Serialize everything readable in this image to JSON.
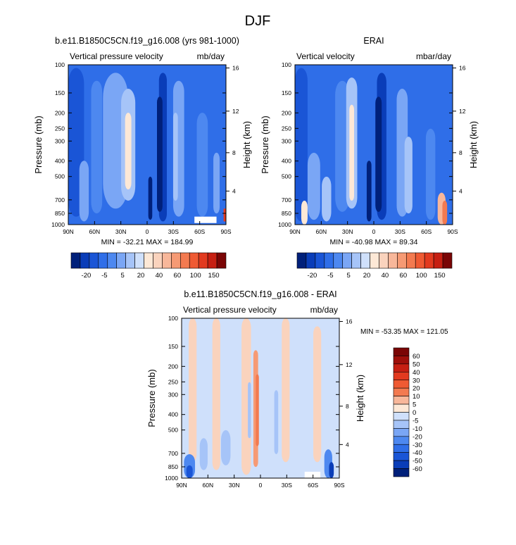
{
  "page_title": "DJF",
  "colors": {
    "blues": [
      "#00207a",
      "#0a3db8",
      "#1a55d6",
      "#2f6ee8",
      "#4d88f0",
      "#7aa6f5",
      "#a6c4f8",
      "#cfe0fb"
    ],
    "cream": "#fde8d6",
    "reds": [
      "#fad3bd",
      "#f8b79a",
      "#f69a74",
      "#f37a50",
      "#ef5a33",
      "#e23a1f",
      "#c61f12",
      "#9e0f0a",
      "#7a0505"
    ]
  },
  "panels": [
    {
      "id": "model",
      "title": "b.e11.B1850C5CN.f19_g16.008 (yrs 981-1000)",
      "left_label": "Vertical pressure velocity",
      "right_label": "mb/day",
      "y_label": "Pressure (mb)",
      "y2_label": "Height (km)",
      "stats": "MIN = -32.21   MAX = 184.99",
      "ticks": {
        "lat": [
          "90N",
          "60N",
          "30N",
          "0",
          "30S",
          "60S",
          "90S"
        ],
        "pressure": [
          "100",
          "150",
          "200",
          "250",
          "300",
          "400",
          "500",
          "700",
          "850",
          "1000"
        ],
        "height": [
          "16",
          "12",
          "8",
          "4"
        ]
      }
    },
    {
      "id": "erai",
      "title": "ERAI",
      "left_label": "Vertical velocity",
      "right_label": "mbar/day",
      "y_label": "Pressure (mb)",
      "y2_label": "Height (km)",
      "stats": "MIN = -40.98   MAX =  89.34",
      "ticks": {
        "lat": [
          "90N",
          "60N",
          "30N",
          "0",
          "30S",
          "60S",
          "90S"
        ],
        "pressure": [
          "100",
          "150",
          "200",
          "250",
          "300",
          "400",
          "500",
          "700",
          "850",
          "1000"
        ],
        "height": [
          "16",
          "12",
          "8",
          "4"
        ]
      }
    },
    {
      "id": "diff",
      "title": "b.e11.B1850C5CN.f19_g16.008 - ERAI",
      "left_label": "Vertical pressure velocity",
      "right_label": "mb/day",
      "y_label": "Pressure (mb)",
      "y2_label": "Height (km)",
      "stats": "MIN = -53.35   MAX = 121.05",
      "ticks": {
        "lat": [
          "90N",
          "60N",
          "30N",
          "0",
          "30S",
          "60S",
          "90S"
        ],
        "pressure": [
          "100",
          "150",
          "200",
          "250",
          "300",
          "400",
          "500",
          "700",
          "850",
          "1000"
        ],
        "height": [
          "16",
          "12",
          "8",
          "4"
        ]
      }
    }
  ],
  "colorbars": {
    "top": {
      "labels": [
        "-20",
        "-5",
        "5",
        "20",
        "40",
        "60",
        "100",
        "150"
      ]
    },
    "diff": {
      "labels": [
        "60",
        "50",
        "40",
        "30",
        "20",
        "10",
        "5",
        "0",
        "-5",
        "-10",
        "-20",
        "-30",
        "-40",
        "-50",
        "-60"
      ]
    }
  },
  "chart_data": [
    {
      "type": "heatmap",
      "title": "b.e11.B1850C5CN.f19_g16.008 (yrs 981-1000)",
      "variable": "Vertical pressure velocity",
      "units": "mb/day",
      "x": [
        "90N",
        "60N",
        "30N",
        "0",
        "30S",
        "60S",
        "90S"
      ],
      "y": [
        100,
        150,
        200,
        250,
        300,
        400,
        500,
        700,
        850,
        1000
      ],
      "ylabel": "Pressure (mb)",
      "y2label": "Height (km)",
      "min": -32.21,
      "max": 184.99,
      "levels": [
        -20,
        -5,
        5,
        20,
        40,
        60,
        100,
        150
      ]
    },
    {
      "type": "heatmap",
      "title": "ERAI",
      "variable": "Vertical velocity",
      "units": "mbar/day",
      "x": [
        "90N",
        "60N",
        "30N",
        "0",
        "30S",
        "60S",
        "90S"
      ],
      "y": [
        100,
        150,
        200,
        250,
        300,
        400,
        500,
        700,
        850,
        1000
      ],
      "ylabel": "Pressure (mb)",
      "y2label": "Height (km)",
      "min": -40.98,
      "max": 89.34,
      "levels": [
        -20,
        -5,
        5,
        20,
        40,
        60,
        100,
        150
      ]
    },
    {
      "type": "heatmap",
      "title": "b.e11.B1850C5CN.f19_g16.008 - ERAI",
      "variable": "Vertical pressure velocity",
      "units": "mb/day",
      "x": [
        "90N",
        "60N",
        "30N",
        "0",
        "30S",
        "60S",
        "90S"
      ],
      "y": [
        100,
        150,
        200,
        250,
        300,
        400,
        500,
        700,
        850,
        1000
      ],
      "ylabel": "Pressure (mb)",
      "y2label": "Height (km)",
      "min": -53.35,
      "max": 121.05,
      "levels": [
        -60,
        -50,
        -40,
        -30,
        -20,
        -10,
        -5,
        0,
        5,
        10,
        20,
        30,
        40,
        50,
        60
      ]
    }
  ]
}
